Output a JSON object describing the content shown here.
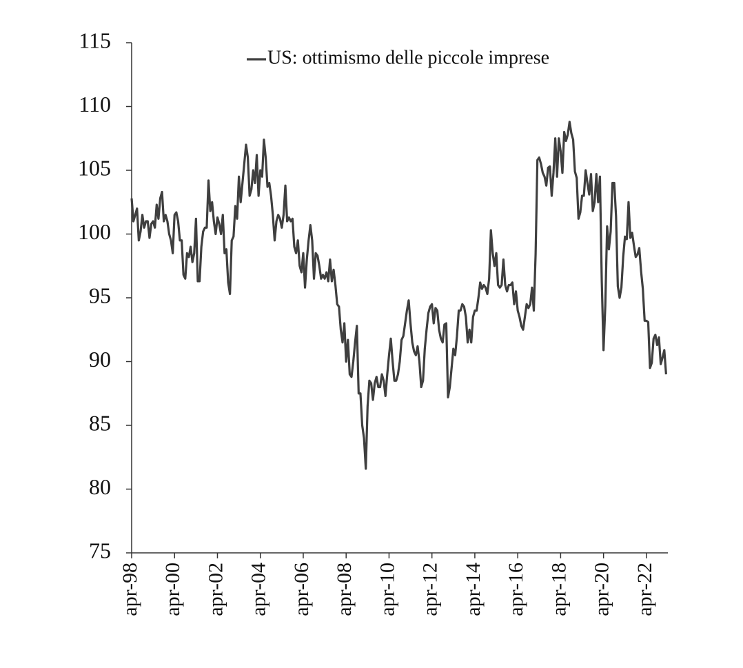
{
  "chart_data": {
    "type": "line",
    "categories": [
      "apr-98",
      null,
      null,
      null,
      null,
      null,
      null,
      null,
      null,
      null,
      null,
      null,
      null,
      null,
      null,
      null,
      null,
      null,
      null,
      null,
      null,
      null,
      null,
      null,
      "apr-00",
      null,
      null,
      null,
      null,
      null,
      null,
      null,
      null,
      null,
      null,
      null,
      null,
      null,
      null,
      null,
      null,
      null,
      null,
      null,
      null,
      null,
      null,
      null,
      "apr-02",
      null,
      null,
      null,
      null,
      null,
      null,
      null,
      null,
      null,
      null,
      null,
      null,
      null,
      null,
      null,
      null,
      null,
      null,
      null,
      null,
      null,
      null,
      null,
      "apr-04",
      null,
      null,
      null,
      null,
      null,
      null,
      null,
      null,
      null,
      null,
      null,
      null,
      null,
      null,
      null,
      null,
      null,
      null,
      null,
      null,
      null,
      null,
      null,
      "apr-06",
      null,
      null,
      null,
      null,
      null,
      null,
      null,
      null,
      null,
      null,
      null,
      null,
      null,
      null,
      null,
      null,
      null,
      null,
      null,
      null,
      null,
      null,
      null,
      "apr-08",
      null,
      null,
      null,
      null,
      null,
      null,
      null,
      null,
      null,
      null,
      null,
      null,
      null,
      null,
      null,
      null,
      null,
      null,
      null,
      null,
      null,
      null,
      null,
      "apr-10",
      null,
      null,
      null,
      null,
      null,
      null,
      null,
      null,
      null,
      null,
      null,
      null,
      null,
      null,
      null,
      null,
      null,
      null,
      null,
      null,
      null,
      null,
      null,
      "apr-12",
      null,
      null,
      null,
      null,
      null,
      null,
      null,
      null,
      null,
      null,
      null,
      null,
      null,
      null,
      null,
      null,
      null,
      null,
      null,
      null,
      null,
      null,
      null,
      "apr-14",
      null,
      null,
      null,
      null,
      null,
      null,
      null,
      null,
      null,
      null,
      null,
      null,
      null,
      null,
      null,
      null,
      null,
      null,
      null,
      null,
      null,
      null,
      null,
      "apr-16",
      null,
      null,
      null,
      null,
      null,
      null,
      null,
      null,
      null,
      null,
      null,
      null,
      null,
      null,
      null,
      null,
      null,
      null,
      null,
      null,
      null,
      null,
      null,
      "apr-18",
      null,
      null,
      null,
      null,
      null,
      null,
      null,
      null,
      null,
      null,
      null,
      null,
      null,
      null,
      null,
      null,
      null,
      null,
      null,
      null,
      null,
      null,
      null,
      "apr-20",
      null,
      null,
      null,
      null,
      null,
      null,
      null,
      null,
      null,
      null,
      null,
      null,
      null,
      null,
      null,
      null,
      null,
      null,
      null,
      null,
      null,
      null,
      null,
      "apr-22",
      null,
      null,
      null,
      null,
      null,
      null,
      null,
      null,
      null,
      null,
      null
    ],
    "series": [
      {
        "name": "US: ottimismo delle piccole imprese",
        "color": "#3f3f3f",
        "values": [
          102.8,
          101,
          101.5,
          102,
          99.5,
          100.2,
          101.5,
          100.5,
          101,
          101,
          99.7,
          100.8,
          101,
          100.5,
          102.3,
          101.2,
          102.8,
          103.3,
          101,
          101.5,
          101,
          100,
          99.5,
          98.5,
          101.5,
          101.7,
          101,
          99.5,
          99.5,
          96.8,
          96.5,
          98.5,
          98.2,
          99,
          97.8,
          98.5,
          101.2,
          96.3,
          96.3,
          99,
          100.2,
          100.5,
          100.5,
          104.2,
          101.8,
          102.5,
          101,
          100,
          101.3,
          100.8,
          100,
          101.5,
          98.5,
          98.8,
          96.2,
          95.3,
          99.5,
          99.8,
          102.2,
          101.2,
          104.5,
          102.5,
          104,
          105.5,
          107,
          106,
          103,
          103.5,
          105,
          104,
          106.2,
          103,
          105,
          104.5,
          107.4,
          106,
          103.7,
          104,
          103,
          101.5,
          99.5,
          101,
          101.5,
          101.2,
          100.5,
          101.5,
          103.8,
          101,
          101.3,
          101,
          101.2,
          99,
          98.5,
          99.5,
          97.5,
          97,
          98.5,
          95.8,
          98,
          99.5,
          100.7,
          99.5,
          96.5,
          98.5,
          98.3,
          97.5,
          96.5,
          96.8,
          96.5,
          97,
          96.3,
          98,
          96.3,
          97.2,
          96,
          94.5,
          94.3,
          92.5,
          91.5,
          93,
          90,
          91.7,
          89,
          88.8,
          90,
          91.5,
          92.8,
          87.5,
          87.5,
          85,
          84,
          81.6,
          86.5,
          88.5,
          88.3,
          87,
          88.3,
          88.8,
          88,
          88,
          89,
          88.5,
          87.3,
          89,
          90.5,
          91.8,
          90,
          88.5,
          88.5,
          89,
          90,
          91.7,
          92,
          93,
          94,
          94.8,
          93,
          91.5,
          90.8,
          90.5,
          91.2,
          90,
          88,
          88.5,
          91,
          92.5,
          93.8,
          94.3,
          94.5,
          93,
          94.2,
          94,
          92.5,
          91.8,
          91.5,
          92.9,
          93,
          87.2,
          88,
          89.5,
          91,
          90.5,
          92,
          94,
          94,
          94.5,
          94.3,
          93.5,
          91.5,
          92.5,
          91.5,
          93.5,
          94,
          94,
          95,
          96.2,
          95.7,
          96,
          95.8,
          95.3,
          96.5,
          100.3,
          98.5,
          97.5,
          98.5,
          96,
          95.8,
          96,
          98,
          96,
          95.5,
          96,
          96,
          96.2,
          94.5,
          95.5,
          94,
          93.5,
          92.8,
          92.5,
          93.5,
          94.5,
          94.2,
          94.5,
          95.8,
          94,
          98.4,
          105.8,
          106,
          105.5,
          104.8,
          104.5,
          103.8,
          105.2,
          105.3,
          103,
          104.8,
          107.5,
          104.5,
          107.5,
          106.5,
          104.8,
          108,
          107.3,
          107.8,
          108.8,
          107.9,
          107.4,
          104.9,
          104.4,
          101.2,
          101.7,
          103,
          103,
          105,
          104,
          103.1,
          104.7,
          101.8,
          102.5,
          104.7,
          102.5,
          104.5,
          96.4,
          90.9,
          94.4,
          100.6,
          98.8,
          100.2,
          104,
          104,
          101.4,
          95.9,
          95,
          95.8,
          98.2,
          99.8,
          99.6,
          102.5,
          99.7,
          100.1,
          99.1,
          98.2,
          98.4,
          98.9,
          97.1,
          95.7,
          93.2,
          93.2,
          93.1,
          89.5,
          89.9,
          91.8,
          92.1,
          91.3,
          91.9,
          89.8,
          90.3,
          90.9,
          89.0
        ]
      }
    ],
    "ylim": [
      75,
      115
    ],
    "yticks": [
      75,
      80,
      85,
      90,
      95,
      100,
      105,
      110,
      115
    ],
    "grid": false,
    "legend": "upper center"
  }
}
